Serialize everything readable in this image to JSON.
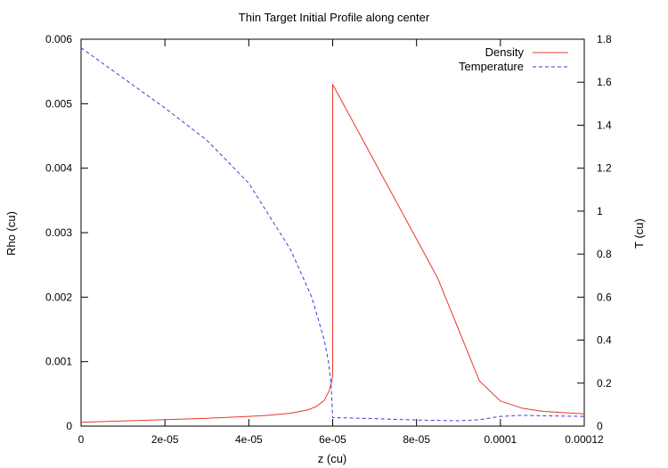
{
  "chart_data": {
    "type": "line",
    "title": "Thin Target Initial Profile along center",
    "xlabel": "z (cu)",
    "ylabel": "Rho (cu)",
    "y2label": "T (cu)",
    "xlim": [
      0,
      0.00012
    ],
    "ylim": [
      0,
      0.006
    ],
    "y2lim": [
      0,
      1.8
    ],
    "xticks": [
      "0",
      "2e-05",
      "4e-05",
      "6e-05",
      "8e-05",
      "0.0001",
      "0.00012"
    ],
    "yticks": [
      "0",
      "0.001",
      "0.002",
      "0.003",
      "0.004",
      "0.005",
      "0.006"
    ],
    "y2ticks": [
      "0",
      "0.2",
      "0.4",
      "0.6",
      "0.8",
      "1",
      "1.2",
      "1.4",
      "1.6",
      "1.8"
    ],
    "legend_position": "top-right",
    "grid": false,
    "series": [
      {
        "name": "Density",
        "axis": "left",
        "color": "#e8372a",
        "dash": "solid",
        "x": [
          0,
          1e-05,
          2e-05,
          3e-05,
          4e-05,
          4.5e-05,
          5e-05,
          5.4e-05,
          5.6e-05,
          5.8e-05,
          5.92e-05,
          5.98e-05,
          6e-05,
          6e-05,
          7e-05,
          8e-05,
          8.5e-05,
          9e-05,
          9.5e-05,
          0.0001,
          0.000105,
          0.00011,
          0.00012
        ],
        "values": [
          6e-05,
          8e-05,
          0.0001,
          0.00012,
          0.00015,
          0.00017,
          0.0002,
          0.00025,
          0.0003,
          0.0004,
          0.00055,
          0.0007,
          0.0008,
          0.0053,
          0.0041,
          0.0029,
          0.0023,
          0.0015,
          0.0007,
          0.00039,
          0.00028,
          0.00023,
          0.00019
        ]
      },
      {
        "name": "Temperature",
        "axis": "right",
        "color": "#3b3bd9",
        "dash": "dashed",
        "x": [
          0,
          1e-05,
          2e-05,
          3e-05,
          4e-05,
          5e-05,
          5.5e-05,
          5.8e-05,
          5.9e-05,
          5.96e-05,
          6e-05,
          7e-05,
          8e-05,
          9e-05,
          9.5e-05,
          0.0001,
          0.000105,
          0.00011,
          0.00012
        ],
        "values": [
          1.76,
          1.62,
          1.48,
          1.33,
          1.13,
          0.82,
          0.6,
          0.4,
          0.3,
          0.2,
          0.04,
          0.035,
          0.028,
          0.025,
          0.03,
          0.045,
          0.05,
          0.048,
          0.045
        ]
      }
    ]
  }
}
